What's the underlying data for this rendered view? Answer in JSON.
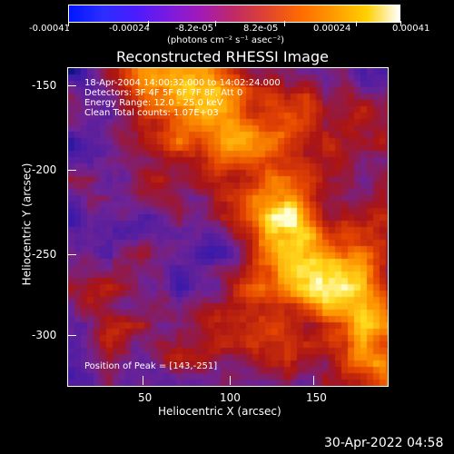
{
  "colorbar": {
    "min_label": "-0.00041",
    "labels": [
      "-0.00041",
      "-0.00024",
      "-8.2e-05",
      "8.2e-05",
      "0.00024",
      "0.00041"
    ],
    "unit": "(photons cm⁻² s⁻¹ asec⁻²)"
  },
  "image": {
    "title": "Reconstructed RHESSI Image",
    "overlay_lines": [
      "18-Apr-2004 14:00:32.000 to 14:02:24.000",
      "Detectors: 3F 4F 5F 6F 7F 8F, Att 0",
      "Energy Range: 12.0 - 25.0 keV",
      "Clean     Total counts: 1.07E+03"
    ],
    "peak_label": "Position of Peak = [143,-251]",
    "ylabel": "Heliocentric Y (arcsec)",
    "xlabel": "Heliocentric X (arcsec)",
    "x_ticks": [
      "50",
      "100",
      "150"
    ],
    "y_ticks": [
      "-150",
      "-200",
      "-250",
      "-300"
    ],
    "x_range": [
      0,
      190
    ],
    "y_range": [
      -330,
      -140
    ]
  },
  "timestamp": "30-Apr-2022 04:58"
}
